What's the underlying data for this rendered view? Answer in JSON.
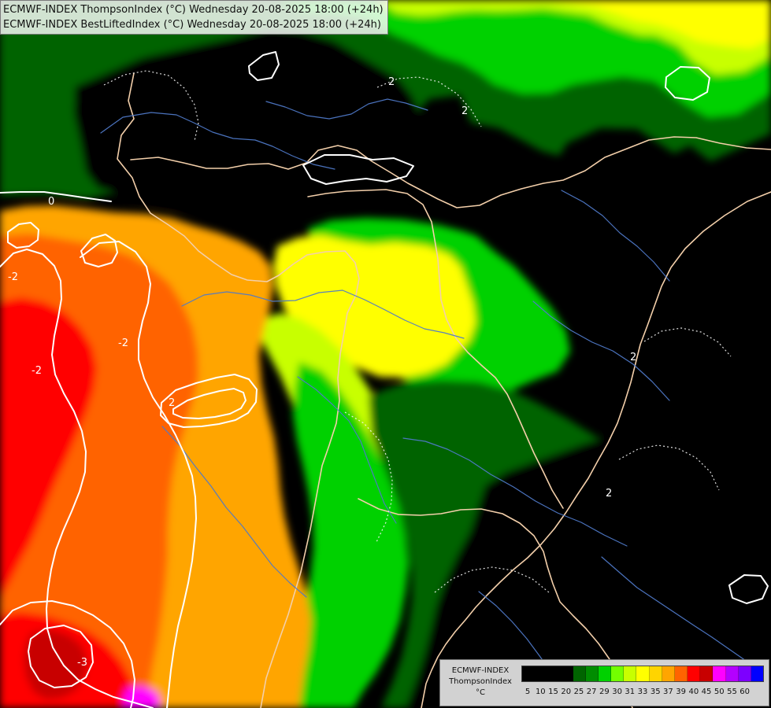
{
  "header": {
    "lines": [
      "ECMWF-INDEX ThompsonIndex (°C) Wednesday 20-08-2025 18:00 (+24h)",
      "ECMWF-INDEX BestLiftedIndex (°C) Wednesday 20-08-2025 18:00 (+24h)"
    ]
  },
  "legend": {
    "source": "ECMWF-INDEX",
    "name": "ThompsonIndex",
    "unit": "°C",
    "ticks": [
      "5",
      "10",
      "15",
      "20",
      "25",
      "27",
      "29",
      "30",
      "31",
      "33",
      "35",
      "37",
      "39",
      "40",
      "45",
      "50",
      "55",
      "60"
    ],
    "colors": [
      "#000000",
      "#000000",
      "#000000",
      "#000000",
      "#006400",
      "#008c00",
      "#00d100",
      "#73ff00",
      "#c8ff00",
      "#ffff00",
      "#ffd400",
      "#ffa500",
      "#ff6400",
      "#ff0000",
      "#c80000",
      "#ff00ff",
      "#b400ff",
      "#7d00ff",
      "#0000ff"
    ]
  },
  "map": {
    "contour_labels": [
      "0",
      "-2",
      "-3",
      "2"
    ]
  }
}
